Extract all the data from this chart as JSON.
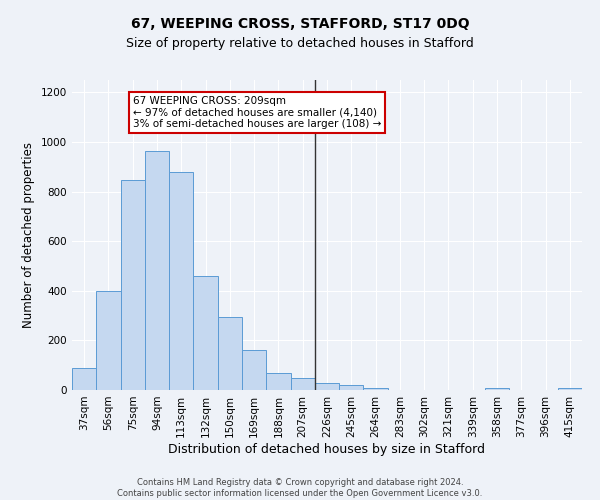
{
  "title": "67, WEEPING CROSS, STAFFORD, ST17 0DQ",
  "subtitle": "Size of property relative to detached houses in Stafford",
  "xlabel": "Distribution of detached houses by size in Stafford",
  "ylabel": "Number of detached properties",
  "footer_line1": "Contains HM Land Registry data © Crown copyright and database right 2024.",
  "footer_line2": "Contains public sector information licensed under the Open Government Licence v3.0.",
  "categories": [
    "37sqm",
    "56sqm",
    "75sqm",
    "94sqm",
    "113sqm",
    "132sqm",
    "150sqm",
    "169sqm",
    "188sqm",
    "207sqm",
    "226sqm",
    "245sqm",
    "264sqm",
    "283sqm",
    "302sqm",
    "321sqm",
    "339sqm",
    "358sqm",
    "377sqm",
    "396sqm",
    "415sqm"
  ],
  "values": [
    90,
    398,
    848,
    965,
    878,
    458,
    293,
    163,
    70,
    48,
    30,
    20,
    10,
    0,
    0,
    0,
    0,
    10,
    0,
    0,
    10
  ],
  "bar_color": "#c5d8f0",
  "bar_edge_color": "#5b9bd5",
  "vline_color": "#333333",
  "annotation_text": "67 WEEPING CROSS: 209sqm\n← 97% of detached houses are smaller (4,140)\n3% of semi-detached houses are larger (108) →",
  "annotation_box_color": "#ffffff",
  "annotation_box_edge_color": "#cc0000",
  "ylim": [
    0,
    1250
  ],
  "yticks": [
    0,
    200,
    400,
    600,
    800,
    1000,
    1200
  ],
  "background_color": "#eef2f8",
  "grid_color": "#ffffff",
  "title_fontsize": 10,
  "subtitle_fontsize": 9,
  "ylabel_fontsize": 8.5,
  "xlabel_fontsize": 9,
  "tick_fontsize": 7.5,
  "footer_fontsize": 6,
  "annotation_fontsize": 7.5
}
